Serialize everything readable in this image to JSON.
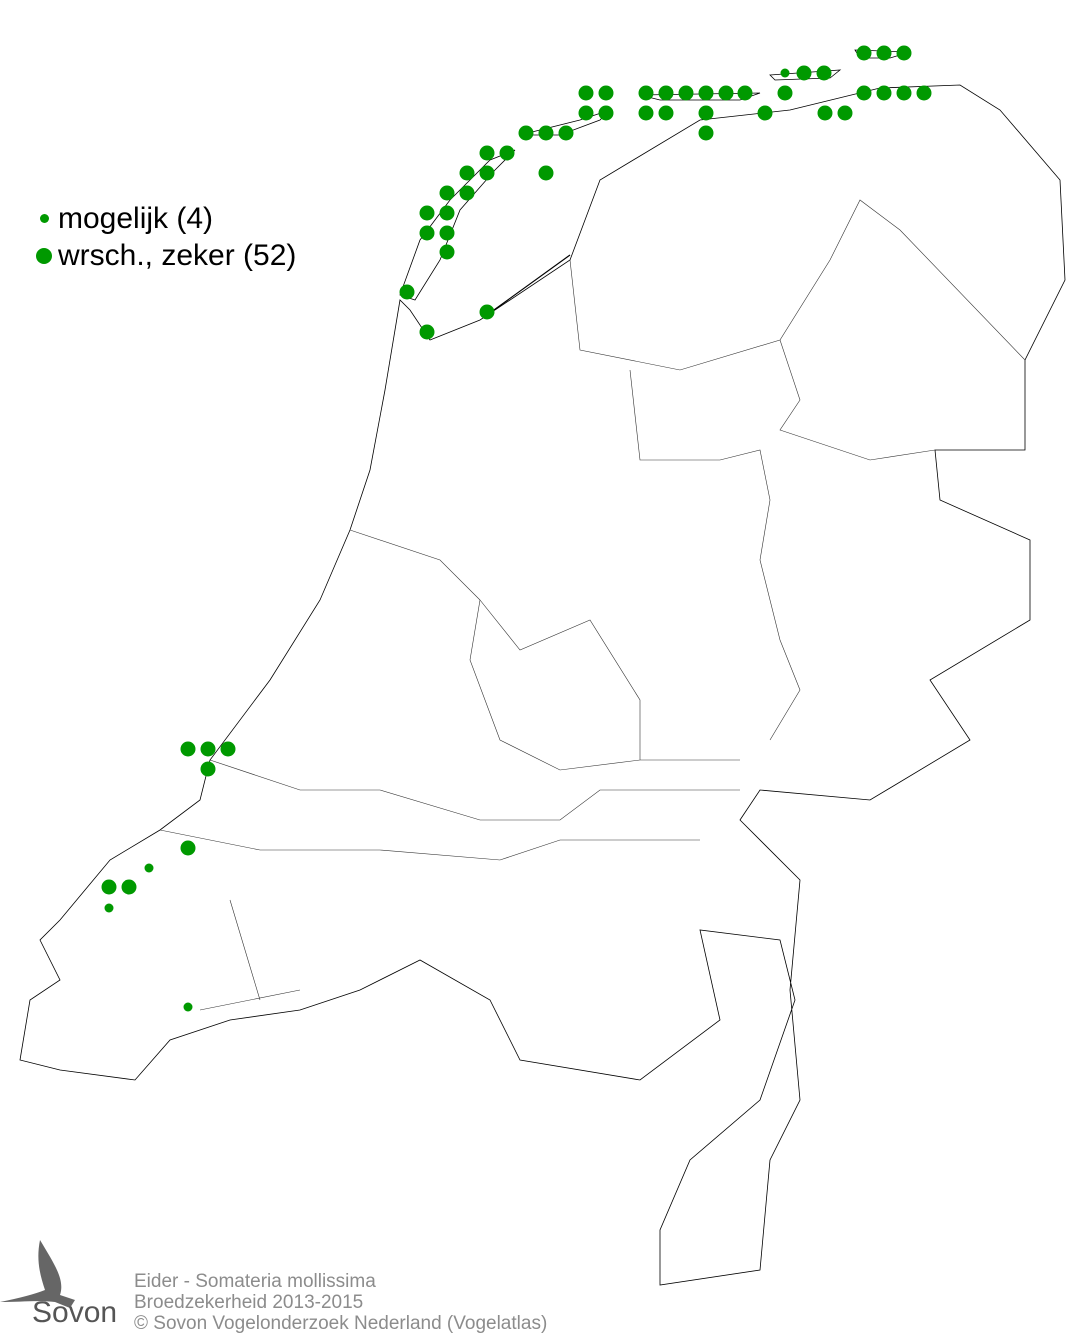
{
  "legend": {
    "items": [
      {
        "label": "mogelijk (4)",
        "size": "small",
        "color": "#009900"
      },
      {
        "label": "wrsch., zeker (52)",
        "size": "large",
        "color": "#009900"
      }
    ]
  },
  "caption": {
    "line1": "Eider - Somateria mollissima",
    "line2": "Broedzekerheid 2013-2015",
    "line3": "© Sovon Vogelonderzoek Nederland (Vogelatlas)"
  },
  "logo": {
    "text": "Sovon"
  },
  "colors": {
    "dot": "#009900",
    "border": "#000000",
    "caption": "#8c8c8c"
  }
}
